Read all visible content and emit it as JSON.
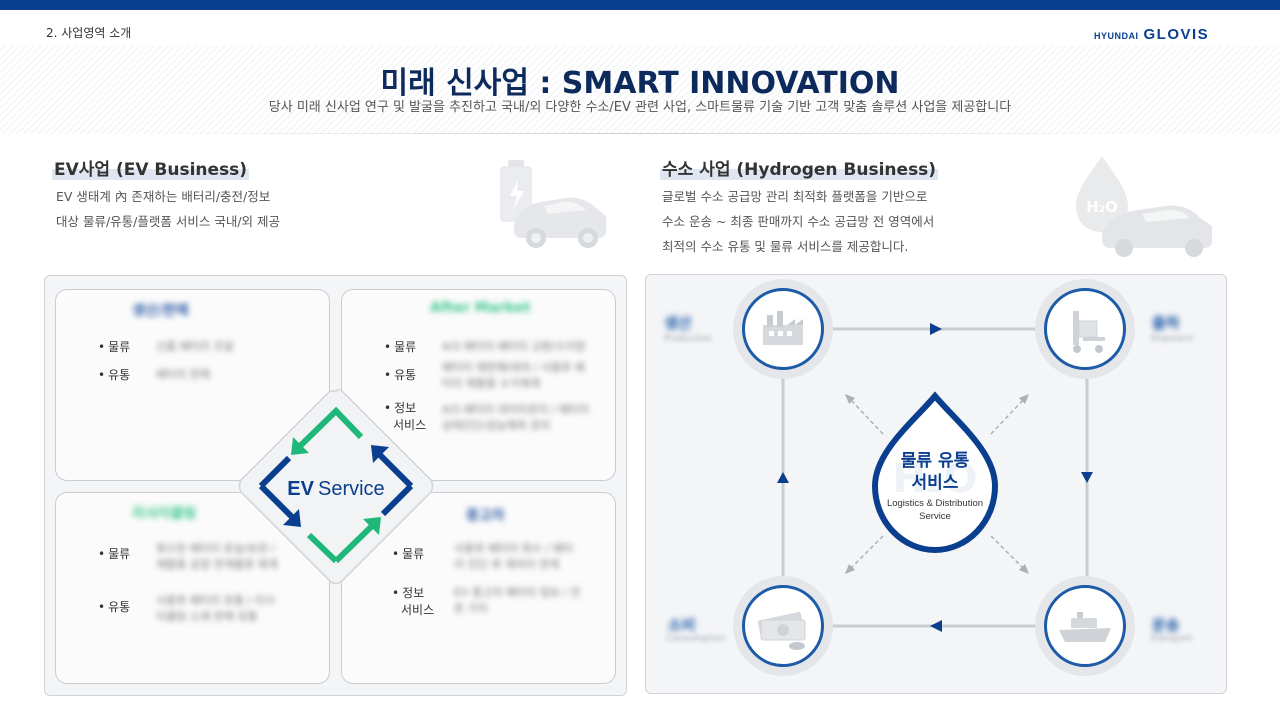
{
  "header": {
    "section": "2. 사업영역 소개",
    "logo_small": "HYUNDAI",
    "logo_big": "GLOVIS",
    "title": "미래 신사업 : SMART INNOVATION",
    "subtitle": "당사 미래 신사업 연구 및 발굴을 추진하고 국내/외 다양한 수소/EV 관련 사업, 스마트물류 기술 기반 고객 맞춤 솔루션 사업을 제공합니다"
  },
  "ev": {
    "title": "EV사업 (EV Business)",
    "desc_line1": "EV 생태계 內 존재하는 배터리/충전/정보",
    "desc_line2": "대상 물류/유통/플랫폼 서비스 국내/외 제공",
    "center_ev": "EV",
    "center_service": "Service",
    "quadrants": [
      {
        "title": "생산/판매",
        "rows": [
          {
            "label": "물류",
            "detail": "신품 배터리 조달"
          },
          {
            "label": "유통",
            "detail": "배터리 판매"
          }
        ]
      },
      {
        "title": "After Market",
        "rows": [
          {
            "label": "물류",
            "detail": "A/S 배터리 배터리 교환/수리망"
          },
          {
            "label": "유통",
            "detail": "배터리 재판매/대여 / 사용후 배터리 재활용 수거체계"
          },
          {
            "label": "정보",
            "label2": "서비스",
            "detail": "A/S 배터리 데이터관리 / 배터리 상태진단/성능예측 관리"
          }
        ]
      },
      {
        "title": "리사이클링",
        "rows": [
          {
            "label": "물류",
            "detail": "회수된 배터리 운송/보관 / 재활용 공정 연계물류 체계"
          },
          {
            "label": "유통",
            "detail": "사용후 배터리 유통 / 리사이클링 소재 판매 유통"
          }
        ]
      },
      {
        "title": "중고차",
        "rows": [
          {
            "label": "물류",
            "detail": "사용후 배터리 회수 / 배터리 진단 후 재처리 연계"
          },
          {
            "label": "정보",
            "label2": "서비스",
            "detail": "EV 중고차 배터리 정보 / 잔존 가치"
          }
        ]
      }
    ]
  },
  "hydrogen": {
    "title": "수소 사업 (Hydrogen Business)",
    "desc_line1": "글로벌 수소 공급망 관리 최적화 플랫폼을 기반으로",
    "desc_line2": "수소 운송 ~ 최종 판매까지  수소 공급망 전 영역에서",
    "desc_line3": "최적의 수소 유통 및 물류 서비스를 제공합니다.",
    "drop_badge": "H₂O",
    "center_line1": "물류 유통",
    "center_line2": "서비스",
    "center_en1": "Logistics & Distribution",
    "center_en2": "Service",
    "nodes": [
      {
        "label": "생산",
        "sub": "Production"
      },
      {
        "label": "출하",
        "sub": "Shipment"
      },
      {
        "label": "소비",
        "sub": "Consumption"
      },
      {
        "label": "운송",
        "sub": "Transport"
      }
    ]
  },
  "colors": {
    "brand_blue": "#0a3f8f",
    "accent_green": "#1fb87a",
    "node_blue": "#1d5aa8"
  }
}
